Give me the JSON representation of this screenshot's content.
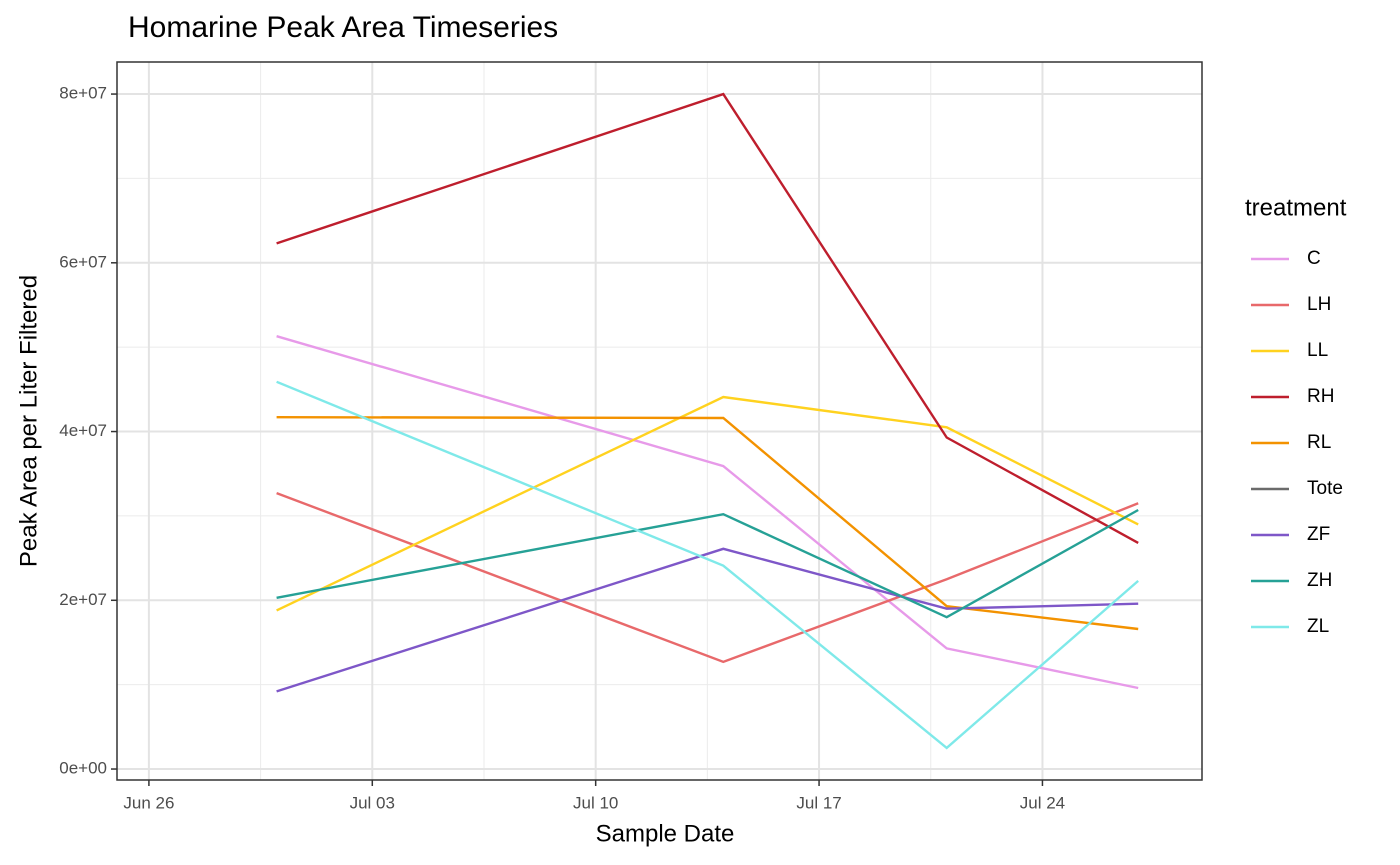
{
  "chart_data": {
    "type": "line",
    "title": "Homarine Peak Area Timeseries",
    "xlabel": "Sample Date",
    "ylabel": "Peak Area per Liter Filtered",
    "legend_title": "treatment",
    "legend": "right",
    "grid": true,
    "x": [
      "Jun 30",
      "Jul 14",
      "Jul 21",
      "Jul 27"
    ],
    "xlim": [
      "Jun 25",
      "Jul 29"
    ],
    "xticks": [
      "Jun 26",
      "Jul 03",
      "Jul 10",
      "Jul 17",
      "Jul 24"
    ],
    "ylim": [
      -1300000,
      83800000
    ],
    "yticks": [
      {
        "value": 0,
        "label": "0e+00"
      },
      {
        "value": 20000000,
        "label": "2e+07"
      },
      {
        "value": 40000000,
        "label": "4e+07"
      },
      {
        "value": 60000000,
        "label": "6e+07"
      },
      {
        "value": 80000000,
        "label": "8e+07"
      }
    ],
    "series": [
      {
        "name": "C",
        "color": "#e79ae9",
        "values": [
          51300000,
          35900000,
          14300000,
          9600000
        ]
      },
      {
        "name": "LH",
        "color": "#e8696b",
        "values": [
          32700000,
          12700000,
          22500000,
          31500000
        ]
      },
      {
        "name": "LL",
        "color": "#ffd21f",
        "values": [
          18800000,
          44100000,
          40500000,
          29000000
        ]
      },
      {
        "name": "RH",
        "color": "#be1e2d",
        "values": [
          62300000,
          80000000,
          39300000,
          26800000
        ]
      },
      {
        "name": "RL",
        "color": "#f39200",
        "values": [
          41700000,
          41600000,
          19300000,
          16600000
        ]
      },
      {
        "name": "Tote",
        "color": "#6b6b6b",
        "values": [
          null,
          null,
          null,
          null
        ]
      },
      {
        "name": "ZF",
        "color": "#7e57c8",
        "values": [
          9200000,
          26100000,
          19000000,
          19600000
        ]
      },
      {
        "name": "ZH",
        "color": "#26a196",
        "values": [
          20300000,
          30200000,
          18000000,
          30700000
        ]
      },
      {
        "name": "ZL",
        "color": "#7fe9e9",
        "values": [
          45900000,
          24100000,
          2500000,
          22300000
        ]
      }
    ]
  }
}
